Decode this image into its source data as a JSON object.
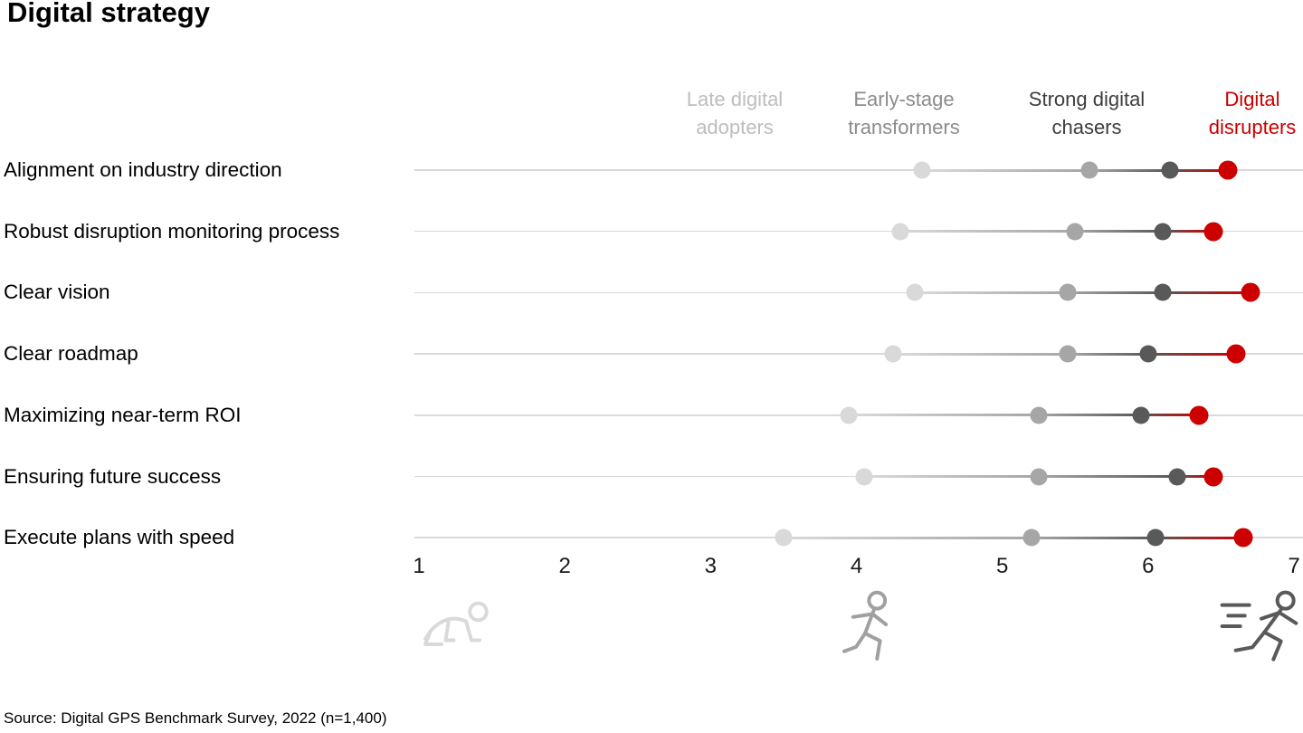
{
  "title": "Digital strategy",
  "source_note": "Source: Digital GPS Benchmark Survey, 2022 (n=1,400)",
  "legend": {
    "items": [
      {
        "label": "Late digital adopters",
        "text_color": "#bdbdbd"
      },
      {
        "label": "Early-stage transformers",
        "text_color": "#8c8c8c"
      },
      {
        "label": "Strong digital chasers",
        "text_color": "#3d3d3d"
      },
      {
        "label": "Digital disrupters",
        "text_color": "#cc0000"
      }
    ]
  },
  "icons": {
    "left": "crawling-person-icon",
    "middle": "running-person-icon",
    "right": "sprinting-person-icon",
    "left_color": "#d9d9d9",
    "middle_color": "#a0a0a0",
    "right_color": "#595959"
  },
  "chart_data": {
    "type": "scatter",
    "subtype": "dot-plot-dumbbell",
    "title": "Digital strategy",
    "categories": [
      "Alignment on industry direction",
      "Robust disruption monitoring process",
      "Clear vision",
      "Clear roadmap",
      "Maximizing near-term ROI",
      "Ensuring future success",
      "Execute plans with speed"
    ],
    "series": [
      {
        "name": "Late digital adopters",
        "color": "#d9d9d9",
        "values": [
          4.45,
          4.3,
          4.4,
          4.25,
          3.95,
          4.05,
          3.5
        ]
      },
      {
        "name": "Early-stage transformers",
        "color": "#a6a6a6",
        "values": [
          5.6,
          5.5,
          5.45,
          5.45,
          5.25,
          5.25,
          5.2
        ]
      },
      {
        "name": "Strong digital chasers",
        "color": "#595959",
        "values": [
          6.15,
          6.1,
          6.1,
          6.0,
          5.95,
          6.2,
          6.05
        ]
      },
      {
        "name": "Digital disrupters",
        "color": "#cc0000",
        "values": [
          6.55,
          6.45,
          6.7,
          6.6,
          6.35,
          6.45,
          6.65
        ]
      }
    ],
    "xlim": [
      1,
      7
    ],
    "x_ticks": [
      "1",
      "2",
      "3",
      "4",
      "5",
      "6",
      "7"
    ],
    "xlabel": "",
    "ylabel": "",
    "grid": false,
    "legend_position": "top",
    "baseline_color": "#d9d9d9",
    "annotation": "gradient connector from lowest (light gray) to highest (red) value per row"
  }
}
